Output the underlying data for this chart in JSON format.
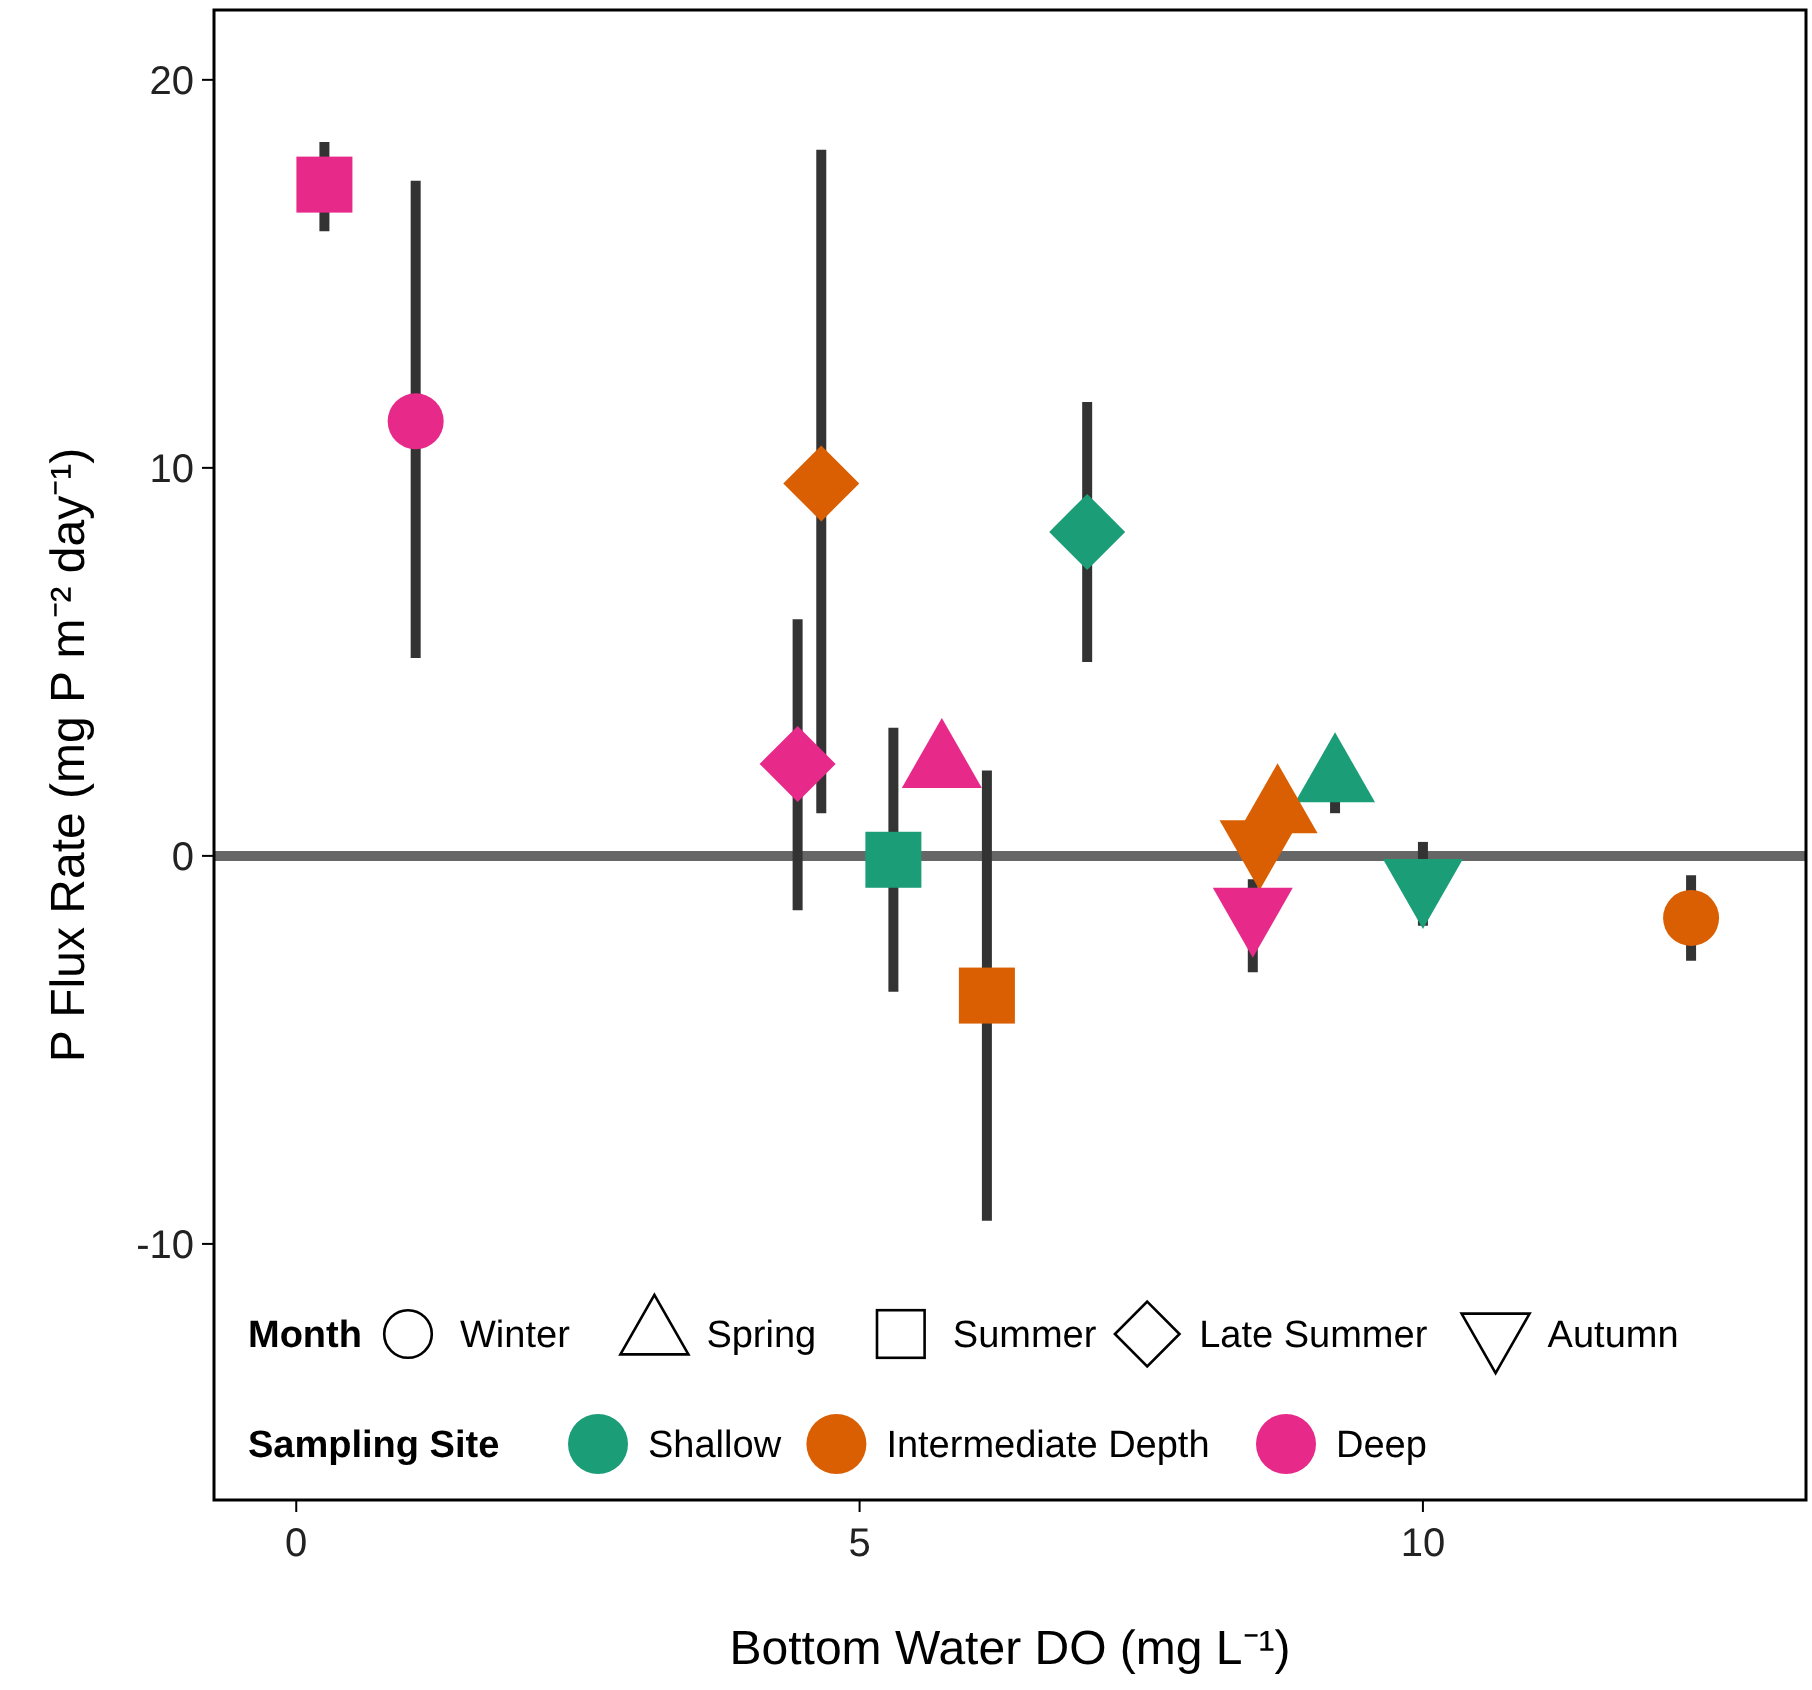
{
  "chart_data": {
    "type": "scatter",
    "xlabel": "Bottom Water DO (mg L⁻¹)",
    "ylabel": "P Flux Rate (mg P m⁻² day⁻¹)",
    "xlim": [
      -0.73,
      13.4
    ],
    "ylim": [
      -16.6,
      21.8
    ],
    "xticks": [
      0,
      5,
      10
    ],
    "yticks": [
      -10,
      0,
      10,
      20
    ],
    "grid": false,
    "legend": "bottom",
    "legend_title": "Sampling Site",
    "annotations": [
      "Month",
      "Winter",
      "Spring",
      "Summer",
      "Late Summer",
      "Autumn"
    ],
    "ref_lines": [
      {
        "axis": "y",
        "value": 0,
        "color": "#666666"
      }
    ],
    "series": [
      {
        "name": "Shallow",
        "color": "#1b9e77",
        "x": [
          5.3,
          7.02,
          9.22,
          10.0
        ],
        "values": [
          -0.1,
          8.35,
          2.0,
          -0.7
        ],
        "errors": [
          [
            -3.5,
            3.3
          ],
          [
            5.0,
            11.7
          ],
          [
            1.1,
            2.9
          ],
          [
            -1.8,
            0.36
          ]
        ],
        "marker": [
          "square",
          "diamond",
          "triangle",
          "triangle-down"
        ]
      },
      {
        "name": "Intermediate Depth",
        "color": "#d95f02",
        "x": [
          4.66,
          6.13,
          8.55,
          8.71,
          12.38
        ],
        "values": [
          9.6,
          -3.6,
          0.3,
          1.2,
          -1.6
        ],
        "errors": [
          [
            1.1,
            18.2
          ],
          [
            -9.4,
            2.2
          ],
          null,
          null,
          [
            -2.7,
            -0.5
          ]
        ],
        "marker": [
          "diamond",
          "square",
          "triangle-down",
          "triangle",
          "circle"
        ]
      },
      {
        "name": "Deep",
        "color": "#e7298a",
        "x": [
          0.25,
          1.06,
          4.45,
          5.73,
          8.49
        ],
        "values": [
          17.3,
          11.2,
          2.37,
          2.37,
          -1.44
        ],
        "errors": [
          [
            16.1,
            18.4
          ],
          [
            5.1,
            17.4
          ],
          [
            -1.4,
            6.1
          ],
          null,
          [
            -3.0,
            -0.6
          ]
        ],
        "marker": [
          "square",
          "circle",
          "diamond",
          "triangle",
          "triangle-down"
        ]
      }
    ]
  }
}
